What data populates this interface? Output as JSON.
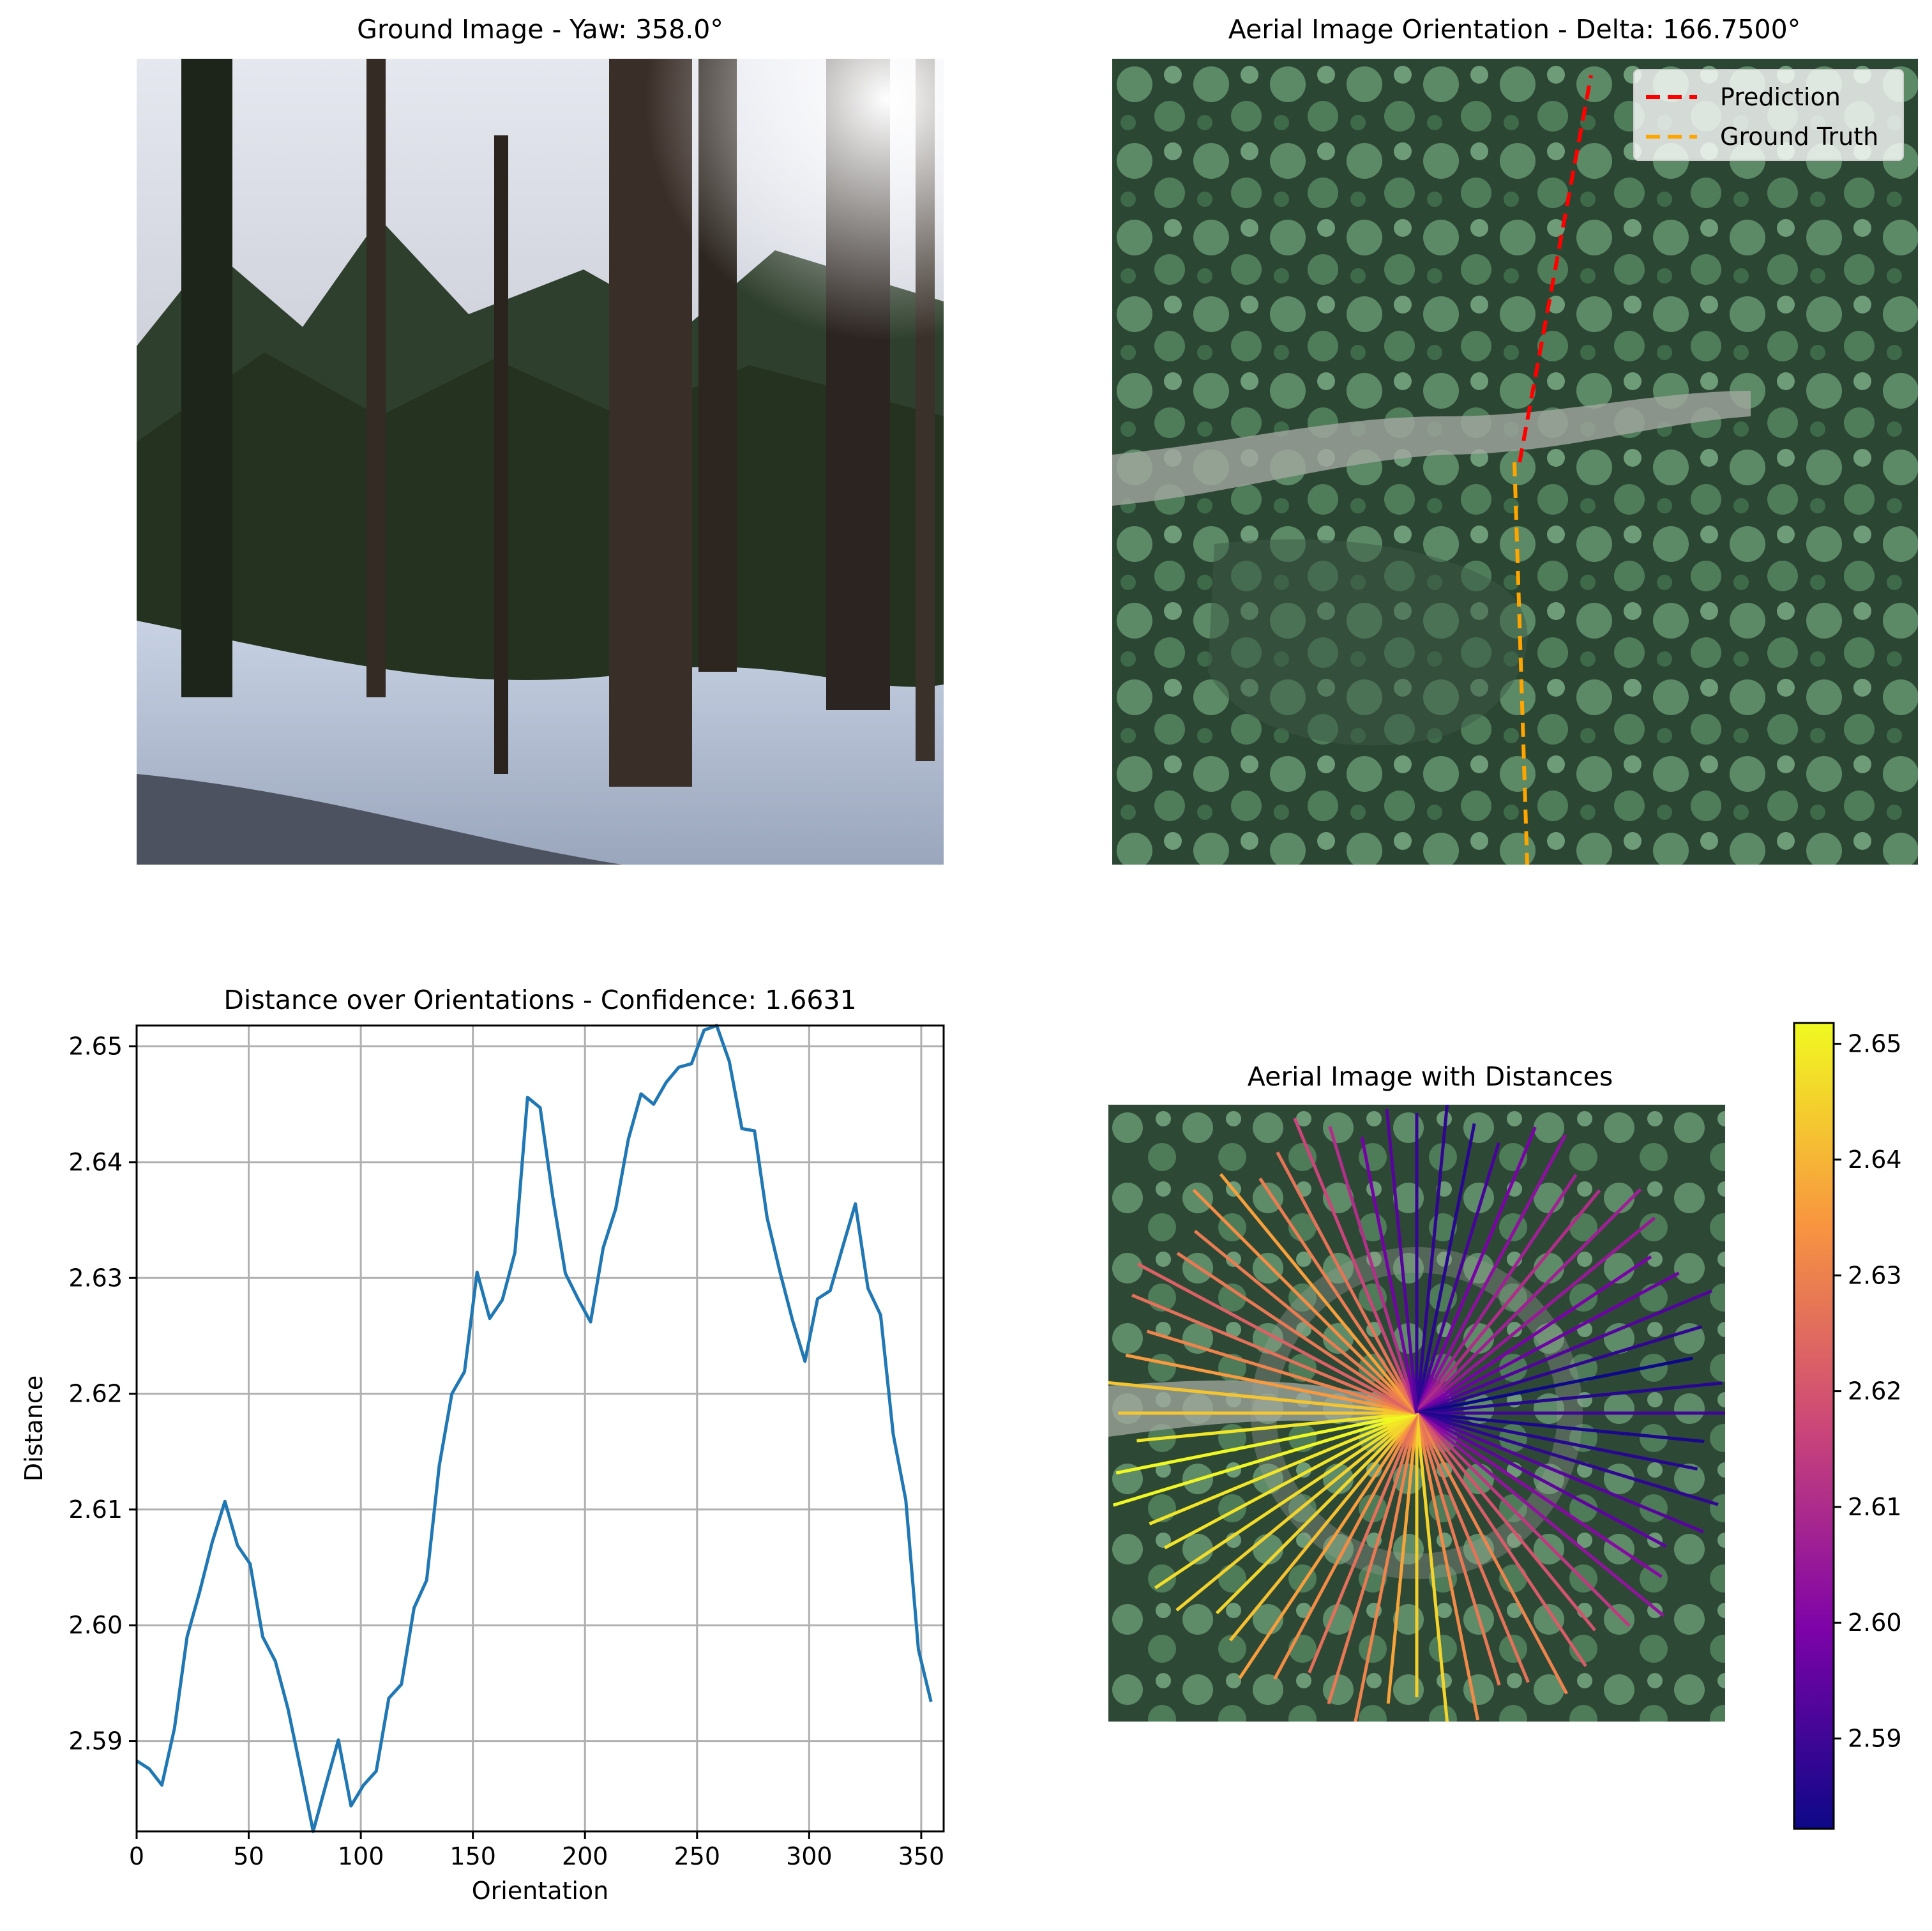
{
  "panels": {
    "ground_title": "Ground Image - Yaw: 358.0°",
    "aerial_title": "Aerial Image Orientation - Delta: 166.7500°",
    "distance_title": "Distance over Orientations - Confidence: 1.6631",
    "aerial_dist_title": "Aerial Image with Distances"
  },
  "legend": {
    "prediction_label": "Prediction",
    "ground_truth_label": "Ground Truth",
    "prediction_color": "#ff0000",
    "ground_truth_color": "#ffa500"
  },
  "chart_data": [
    {
      "type": "line",
      "title": "Distance over Orientations - Confidence: 1.6631",
      "xlabel": "Orientation",
      "ylabel": "Distance",
      "xlim": [
        0,
        360
      ],
      "ylim": [
        2.5822,
        2.6518
      ],
      "xticks": [
        0,
        50,
        100,
        150,
        200,
        250,
        300,
        350
      ],
      "yticks": [
        2.59,
        2.6,
        2.61,
        2.62,
        2.63,
        2.64,
        2.65
      ],
      "grid": true,
      "line_color": "#1f77b4",
      "x": [
        0,
        5.625,
        11.25,
        16.875,
        22.5,
        28.125,
        33.75,
        39.375,
        45,
        50.625,
        56.25,
        61.875,
        67.5,
        73.125,
        78.75,
        84.375,
        90,
        95.625,
        101.25,
        106.875,
        112.5,
        118.125,
        123.75,
        129.375,
        135,
        140.625,
        146.25,
        151.875,
        157.5,
        163.125,
        168.75,
        174.375,
        180,
        185.625,
        191.25,
        196.875,
        202.5,
        208.125,
        213.75,
        219.375,
        225,
        230.625,
        236.25,
        241.875,
        247.5,
        253.125,
        258.75,
        264.375,
        270,
        275.625,
        281.25,
        286.875,
        292.5,
        298.125,
        303.75,
        309.375,
        315,
        320.625,
        326.25,
        331.875,
        337.5,
        343.125,
        348.75,
        354.375
      ],
      "y": [
        2.5883,
        2.5876,
        2.5862,
        2.5911,
        2.599,
        2.6029,
        2.6072,
        2.6107,
        2.6069,
        2.6053,
        2.599,
        2.5969,
        2.5928,
        2.5876,
        2.5822,
        2.5862,
        2.5901,
        2.5844,
        2.5862,
        2.5874,
        2.5937,
        2.5949,
        2.6015,
        2.6039,
        2.6138,
        2.62,
        2.6219,
        2.6305,
        2.6265,
        2.6281,
        2.6322,
        2.6456,
        2.6447,
        2.637,
        2.6304,
        2.6282,
        2.6262,
        2.6326,
        2.636,
        2.642,
        2.6459,
        2.645,
        2.6469,
        2.6482,
        2.6485,
        2.6514,
        2.6518,
        2.6487,
        2.6429,
        2.6427,
        2.6352,
        2.6306,
        2.6264,
        2.6228,
        2.6282,
        2.6289,
        2.6327,
        2.6364,
        2.6291,
        2.6268,
        2.6165,
        2.6108,
        2.5979,
        2.5934
      ]
    },
    {
      "type": "heatmap",
      "title": "Aerial Image with Distances",
      "colormap": "plasma",
      "colorbar_range": [
        2.5822,
        2.6518
      ],
      "colorbar_ticks": [
        2.59,
        2.6,
        2.61,
        2.62,
        2.63,
        2.64,
        2.65
      ]
    }
  ]
}
